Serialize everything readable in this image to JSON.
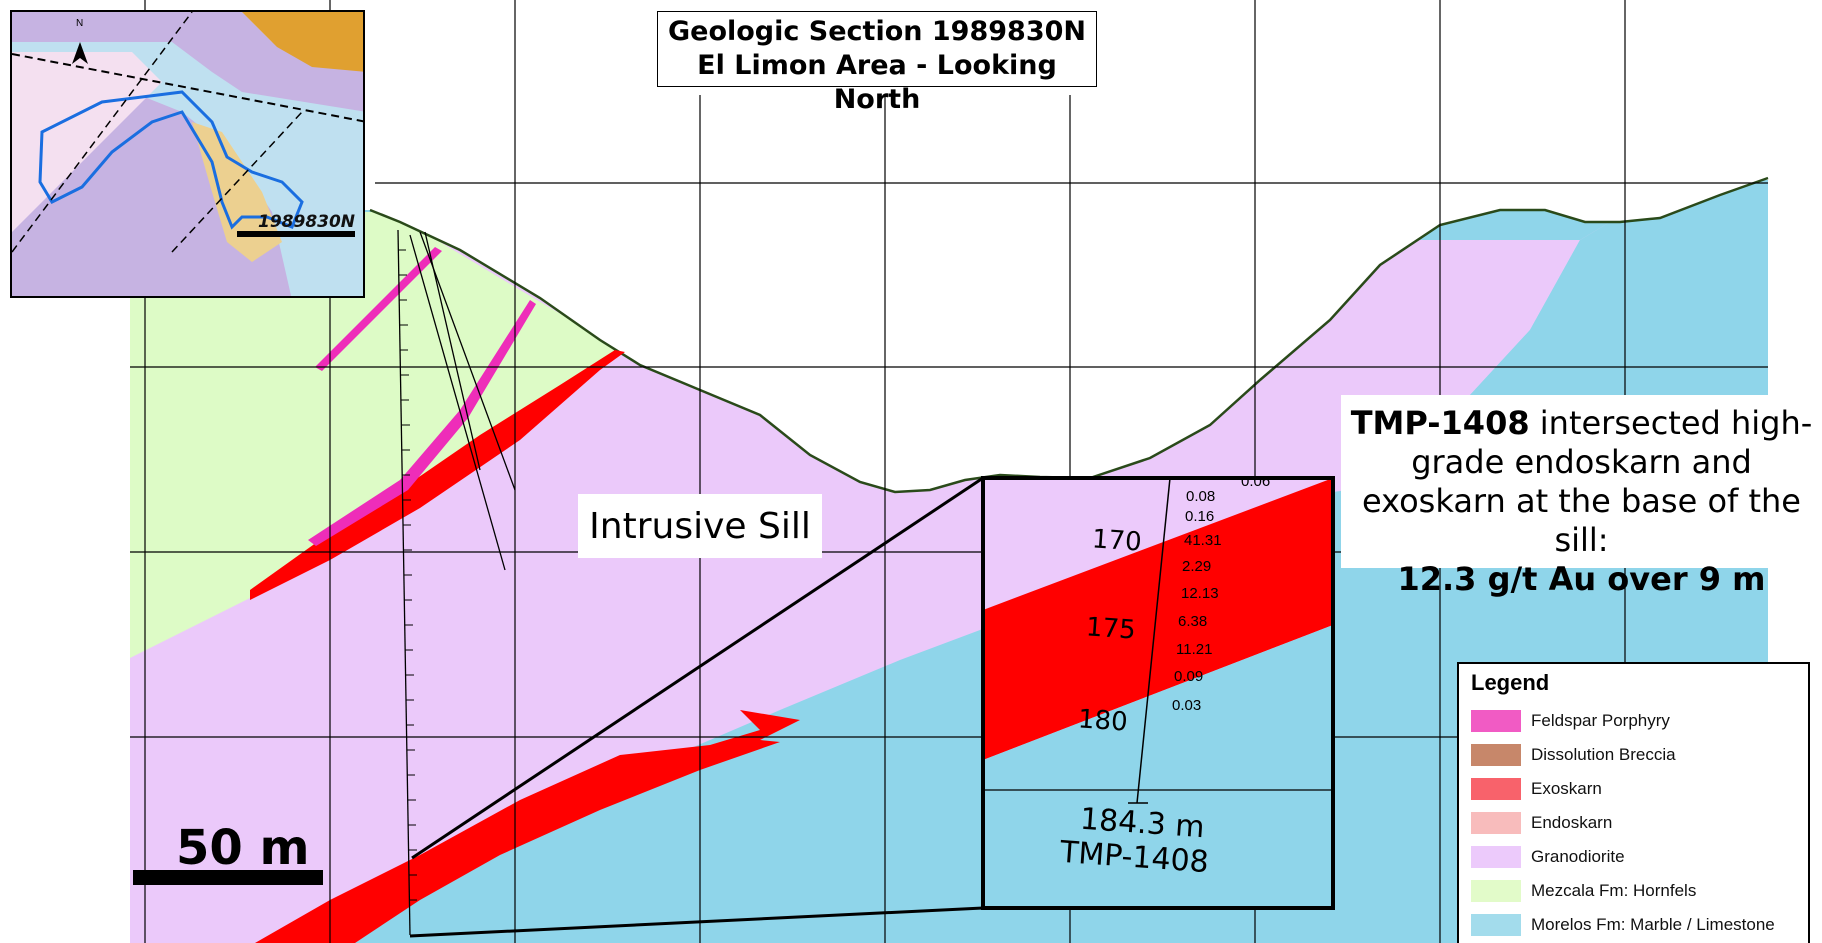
{
  "title": {
    "line1": "Geologic Section 1989830N",
    "line2": "El Limon Area - Looking North"
  },
  "sill_label": "Intrusive Sill",
  "callout": {
    "hole_id": "TMP-1408",
    "text_part1": " intersected high-grade endoskarn and exoskarn at the base of the sill:",
    "highlight": "12.3 g/t Au over 9 m"
  },
  "scale_bar": {
    "label": "50 m"
  },
  "inset_map": {
    "section_label": "1989830N",
    "north_arrow": "N"
  },
  "detail": {
    "depth_labels": [
      "170",
      "175",
      "180"
    ],
    "assays": [
      "0.06",
      "0.08",
      "0.16",
      "41.31",
      "2.29",
      "12.13",
      "6.38",
      "11.21",
      "0.09",
      "0.03"
    ],
    "end_depth": "184.3 m",
    "hole_label": "TMP-1408"
  },
  "legend": {
    "title": "Legend",
    "items": [
      {
        "label": "Feldspar Porphyry",
        "color": "#f15bc4"
      },
      {
        "label": "Dissolution Breccia",
        "color": "#c7876a"
      },
      {
        "label": "Exoskarn",
        "color": "#f8626b"
      },
      {
        "label": "Endoskarn",
        "color": "#f8bcbc"
      },
      {
        "label": "Granodiorite",
        "color": "#eccafb"
      },
      {
        "label": "Mezcala Fm: Hornfels",
        "color": "#e2fbc9"
      },
      {
        "label": "Morelos Fm: Marble / Limestone",
        "color": "#a3dcec"
      }
    ]
  },
  "colors": {
    "granodiorite": "#ebc9fa",
    "hornfels": "#ddfbc6",
    "limestone": "#8fd5ea",
    "exoskarn": "#ff0000",
    "porphyry": "#ee2db9",
    "grid": "#000000"
  }
}
